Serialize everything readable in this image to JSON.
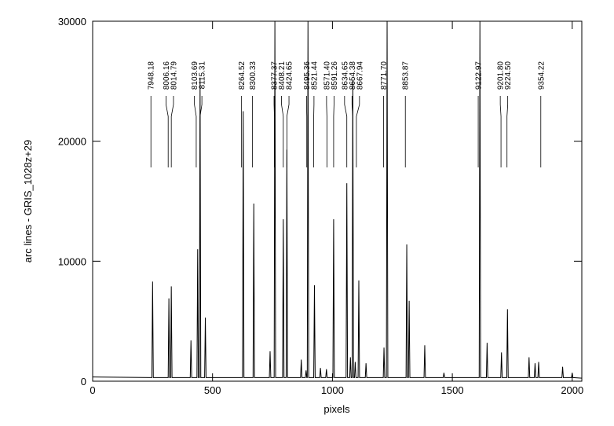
{
  "chart_data": {
    "type": "line",
    "xlabel": "pixels",
    "ylabel": "arc lines - GRIS_1028z+29",
    "xlim": [
      0,
      2040
    ],
    "ylim": [
      0,
      30000
    ],
    "xticks": [
      0,
      500,
      1000,
      1500,
      2000
    ],
    "yticks": [
      0,
      10000,
      20000,
      30000
    ],
    "color": "#000000",
    "x": [
      0,
      247,
      250,
      253,
      315,
      318,
      321,
      325,
      328,
      331,
      407,
      410,
      413,
      435,
      438,
      441,
      445,
      448,
      451,
      467,
      470,
      473,
      625,
      628,
      631,
      669,
      672,
      675,
      737,
      740,
      743,
      757,
      760,
      763,
      792,
      795,
      798,
      807,
      810,
      813,
      867,
      870,
      873,
      887,
      890,
      893,
      895,
      898,
      901,
      922,
      925,
      928,
      947,
      950,
      953,
      972,
      975,
      978,
      1002,
      1005,
      1008,
      1057,
      1060,
      1063,
      1072,
      1075,
      1078,
      1082,
      1085,
      1088,
      1092,
      1095,
      1098,
      1107,
      1110,
      1113,
      1137,
      1140,
      1143,
      1212,
      1215,
      1218,
      1225,
      1228,
      1231,
      1307,
      1310,
      1313,
      1317,
      1320,
      1323,
      1382,
      1385,
      1388,
      1462,
      1465,
      1468,
      1612,
      1615,
      1618,
      1642,
      1645,
      1648,
      1702,
      1705,
      1708,
      1727,
      1730,
      1733,
      1817,
      1820,
      1823,
      1842,
      1845,
      1848,
      1857,
      1860,
      1863,
      1957,
      1960,
      1963,
      1997,
      2000,
      2003,
      2040
    ],
    "values": [
      350,
      300,
      8300,
      300,
      300,
      6900,
      300,
      300,
      7900,
      300,
      300,
      3400,
      300,
      300,
      11000,
      300,
      300,
      25300,
      300,
      300,
      5300,
      300,
      300,
      22500,
      300,
      300,
      14800,
      300,
      300,
      2500,
      300,
      300,
      30000,
      300,
      300,
      13500,
      300,
      300,
      19300,
      300,
      300,
      1800,
      300,
      300,
      900,
      300,
      300,
      30000,
      300,
      300,
      8000,
      300,
      300,
      1100,
      300,
      300,
      1000,
      300,
      300,
      13500,
      300,
      300,
      16500,
      300,
      300,
      2000,
      300,
      300,
      25100,
      300,
      300,
      1600,
      300,
      300,
      8400,
      300,
      300,
      1500,
      300,
      300,
      2800,
      300,
      300,
      30000,
      300,
      300,
      11400,
      300,
      300,
      6700,
      300,
      300,
      3000,
      300,
      300,
      700,
      300,
      300,
      30000,
      300,
      300,
      3200,
      300,
      300,
      2400,
      300,
      300,
      6000,
      300,
      300,
      2000,
      300,
      300,
      1500,
      300,
      300,
      1600,
      300,
      300,
      1200,
      300,
      300,
      700,
      300,
      250
    ],
    "annotations": [
      {
        "label": "7948.18",
        "x": 243
      },
      {
        "label": "8006.16",
        "x": 315
      },
      {
        "label": "8014.79",
        "x": 328
      },
      {
        "label": "8103.69",
        "x": 432
      },
      {
        "label": "8115.31",
        "x": 448
      },
      {
        "label": "8264.52",
        "x": 621
      },
      {
        "label": "8300.33",
        "x": 666
      },
      {
        "label": "8377.37",
        "x": 758
      },
      {
        "label": "8408.21",
        "x": 795
      },
      {
        "label": "8424.65",
        "x": 810
      },
      {
        "label": "8495.36",
        "x": 893
      },
      {
        "label": "8521.44",
        "x": 922
      },
      {
        "label": "8571.40",
        "x": 977
      },
      {
        "label": "8591.26",
        "x": 1005
      },
      {
        "label": "8634.65",
        "x": 1060
      },
      {
        "label": "8654.38",
        "x": 1085
      },
      {
        "label": "8667.94",
        "x": 1100
      },
      {
        "label": "8771.70",
        "x": 1213
      },
      {
        "label": "8853.87",
        "x": 1304
      },
      {
        "label": "9122.97",
        "x": 1608
      },
      {
        "label": "9201.80",
        "x": 1703
      },
      {
        "label": "9224.50",
        "x": 1728
      },
      {
        "label": "9354.22",
        "x": 1869
      }
    ]
  }
}
